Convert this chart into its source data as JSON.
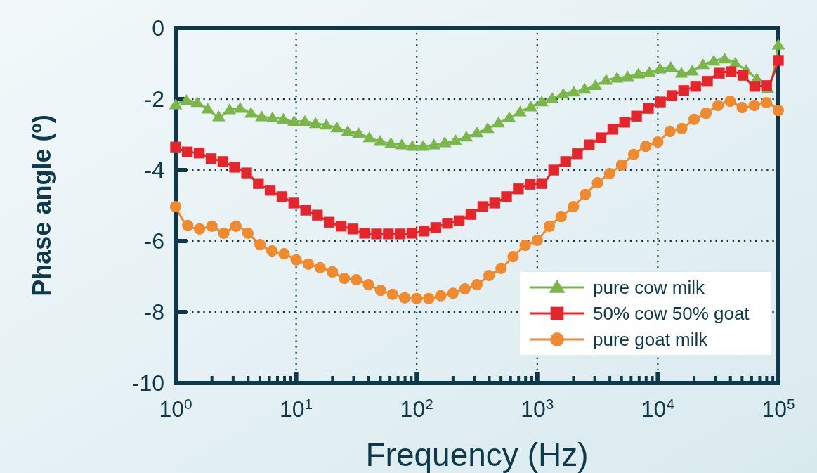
{
  "chart_data": {
    "type": "line",
    "xlabel": "Frequency (Hz)",
    "ylabel": "Phase angle ($^{o}$)",
    "log": "x",
    "xlim": [
      1,
      100000
    ],
    "ylim": [
      -10,
      0
    ],
    "xticks": [
      {
        "value": 1,
        "label": "10$^{0}$"
      },
      {
        "value": 10,
        "label": "10$^{1}$"
      },
      {
        "value": 100,
        "label": "10$^{2}$"
      },
      {
        "value": 1000,
        "label": "10$^{3}$"
      },
      {
        "value": 10000,
        "label": "10$^{4}$"
      },
      {
        "value": 100000,
        "label": "10$^{5}$"
      }
    ],
    "yticks": [
      0,
      -2,
      -4,
      -6,
      -8,
      -10
    ],
    "grid": true,
    "legend": "bottom right",
    "series": [
      {
        "name": "pure cow milk",
        "color": "#7ab648",
        "marker": "triangle",
        "x": [
          1,
          1.23,
          1.51,
          1.85,
          2.28,
          2.8,
          3.43,
          4.22,
          5.18,
          6.36,
          7.82,
          9.6,
          11.8,
          14.5,
          17.8,
          21.8,
          26.8,
          33.0,
          40.5,
          49.7,
          61.1,
          75.0,
          92.1,
          113,
          139,
          171,
          210,
          258,
          316,
          388,
          477,
          586,
          720,
          884,
          1090,
          1330,
          1640,
          2010,
          2470,
          3040,
          3730,
          4580,
          5620,
          6910,
          8480,
          10400,
          12800,
          15700,
          19300,
          23700,
          29100,
          35800,
          44000,
          54000,
          66300,
          81400,
          100000
        ],
        "values": [
          -2.16,
          -2.04,
          -2.1,
          -2.28,
          -2.5,
          -2.3,
          -2.26,
          -2.4,
          -2.5,
          -2.53,
          -2.57,
          -2.63,
          -2.63,
          -2.69,
          -2.73,
          -2.81,
          -2.91,
          -2.97,
          -3.09,
          -3.19,
          -3.25,
          -3.29,
          -3.33,
          -3.33,
          -3.29,
          -3.23,
          -3.17,
          -3.07,
          -2.95,
          -2.83,
          -2.67,
          -2.53,
          -2.36,
          -2.22,
          -2.08,
          -1.98,
          -1.86,
          -1.8,
          -1.72,
          -1.62,
          -1.47,
          -1.41,
          -1.37,
          -1.29,
          -1.25,
          -1.15,
          -1.11,
          -1.27,
          -1.21,
          -1.03,
          -0.93,
          -0.87,
          -0.99,
          -1.19,
          -1.43,
          -1.7,
          -0.48
        ]
      },
      {
        "name": "50% cow 50% goat",
        "color": "#e3262b",
        "marker": "square",
        "x": [
          1,
          1.25,
          1.57,
          1.97,
          2.47,
          3.09,
          3.88,
          4.86,
          6.09,
          7.63,
          9.56,
          12.0,
          15.0,
          18.8,
          23.6,
          29.6,
          37.0,
          46.4,
          58.2,
          72.9,
          91.4,
          115,
          144,
          180,
          225,
          282,
          354,
          444,
          556,
          697,
          873,
          1090,
          1370,
          1720,
          2150,
          2700,
          3380,
          4240,
          5310,
          6660,
          8350,
          10500,
          13100,
          16400,
          20600,
          25800,
          32400,
          40500,
          50800,
          63700,
          79800,
          100000
        ],
        "values": [
          -3.35,
          -3.49,
          -3.52,
          -3.68,
          -3.76,
          -3.92,
          -4.08,
          -4.38,
          -4.57,
          -4.75,
          -4.93,
          -5.13,
          -5.27,
          -5.47,
          -5.58,
          -5.66,
          -5.78,
          -5.8,
          -5.8,
          -5.8,
          -5.78,
          -5.72,
          -5.62,
          -5.5,
          -5.43,
          -5.25,
          -5.03,
          -4.93,
          -4.75,
          -4.53,
          -4.4,
          -4.38,
          -4.0,
          -3.76,
          -3.54,
          -3.29,
          -3.09,
          -2.85,
          -2.65,
          -2.48,
          -2.26,
          -2.08,
          -1.9,
          -1.76,
          -1.64,
          -1.5,
          -1.27,
          -1.23,
          -1.33,
          -1.64,
          -1.62,
          -0.91
        ]
      },
      {
        "name": "pure goat milk",
        "color": "#ef8a2e",
        "marker": "circle",
        "x": [
          1,
          1.26,
          1.58,
          2.0,
          2.51,
          3.16,
          3.98,
          5.01,
          6.31,
          7.94,
          10,
          12.6,
          15.8,
          20.0,
          25.1,
          31.6,
          39.8,
          50.1,
          63.1,
          79.4,
          100,
          126,
          158,
          200,
          251,
          316,
          398,
          501,
          631,
          794,
          1000,
          1260,
          1580,
          2000,
          2510,
          3160,
          3980,
          5010,
          6310,
          7940,
          10000,
          12600,
          15800,
          20000,
          25100,
          31600,
          39800,
          50100,
          63100,
          79400,
          100000
        ],
        "values": [
          -5.03,
          -5.56,
          -5.66,
          -5.58,
          -5.78,
          -5.58,
          -5.78,
          -6.1,
          -6.28,
          -6.36,
          -6.53,
          -6.65,
          -6.75,
          -6.87,
          -7.05,
          -7.09,
          -7.23,
          -7.39,
          -7.5,
          -7.6,
          -7.62,
          -7.62,
          -7.54,
          -7.47,
          -7.35,
          -7.23,
          -6.97,
          -6.77,
          -6.44,
          -6.12,
          -5.98,
          -5.58,
          -5.31,
          -5.03,
          -4.69,
          -4.36,
          -4.1,
          -3.86,
          -3.56,
          -3.33,
          -3.21,
          -2.91,
          -2.83,
          -2.57,
          -2.4,
          -2.18,
          -2.06,
          -2.24,
          -2.18,
          -2.1,
          -2.32
        ]
      }
    ]
  }
}
